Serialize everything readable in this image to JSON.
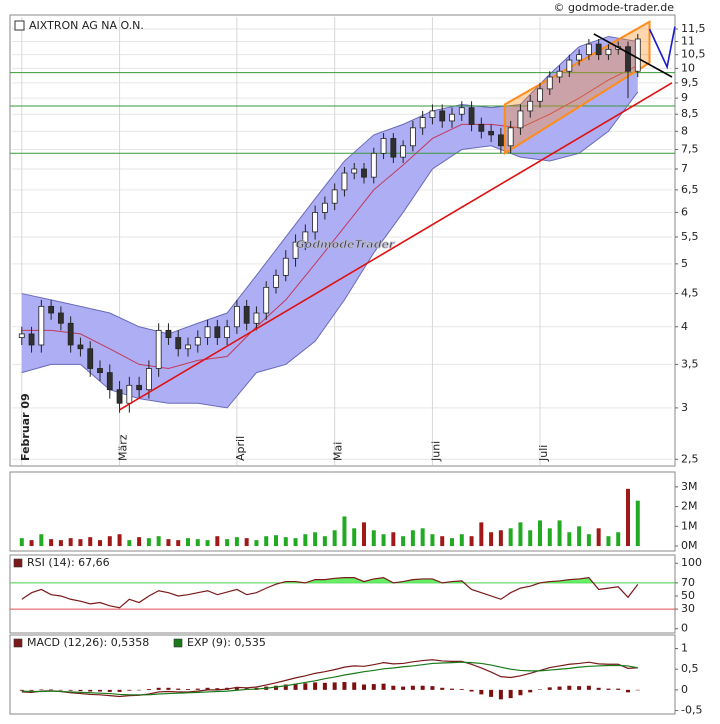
{
  "chart_data": [
    {
      "type": "candlestick",
      "title": "AIXTRON AG NA O.N.",
      "source": "© godmode-trader.de",
      "watermark": "GodmodeTrader",
      "x": [
        0,
        1,
        2,
        3,
        4,
        5,
        6,
        7,
        8,
        9,
        10,
        11,
        12,
        13,
        14,
        15,
        16,
        17,
        18,
        19,
        20,
        21,
        22,
        23,
        24,
        25,
        26,
        27,
        28,
        29,
        30,
        31,
        32,
        33,
        34,
        35,
        36,
        37,
        38,
        39,
        40,
        41,
        42,
        43,
        44,
        45,
        46,
        47,
        48,
        49,
        50,
        51,
        52,
        53,
        54,
        55,
        56,
        57,
        58,
        59,
        60,
        61,
        62,
        63
      ],
      "open": [
        3.85,
        3.9,
        3.75,
        4.3,
        4.2,
        4.05,
        3.75,
        3.7,
        3.45,
        3.4,
        3.2,
        3.05,
        3.25,
        3.2,
        3.45,
        3.95,
        3.85,
        3.7,
        3.75,
        3.85,
        4.0,
        3.85,
        4.0,
        4.3,
        4.05,
        4.2,
        4.6,
        4.8,
        5.1,
        5.4,
        5.6,
        6.0,
        6.2,
        6.5,
        6.9,
        7.0,
        6.8,
        7.4,
        7.8,
        7.3,
        7.6,
        8.1,
        8.4,
        8.6,
        8.3,
        8.5,
        8.7,
        8.2,
        8.0,
        7.9,
        7.6,
        8.1,
        8.6,
        8.9,
        9.3,
        9.7,
        9.9,
        10.3,
        10.5,
        10.9,
        10.5,
        10.7,
        10.8,
        9.9
      ],
      "high": [
        4.0,
        4.0,
        4.4,
        4.4,
        4.3,
        4.15,
        3.85,
        3.8,
        3.55,
        3.5,
        3.3,
        3.35,
        3.35,
        3.55,
        4.05,
        4.05,
        3.95,
        3.85,
        3.95,
        4.1,
        4.1,
        4.1,
        4.4,
        4.4,
        4.3,
        4.7,
        4.9,
        5.25,
        5.55,
        5.75,
        6.15,
        6.35,
        6.65,
        7.05,
        7.15,
        7.15,
        7.55,
        7.95,
        7.95,
        7.75,
        8.3,
        8.6,
        8.8,
        8.8,
        8.7,
        8.9,
        8.9,
        8.4,
        8.2,
        8.1,
        8.3,
        8.8,
        9.1,
        9.5,
        9.9,
        10.1,
        10.5,
        10.7,
        11.1,
        11.1,
        10.9,
        11.0,
        11.0,
        11.3
      ],
      "low": [
        3.75,
        3.65,
        3.65,
        4.1,
        3.95,
        3.65,
        3.6,
        3.35,
        3.3,
        3.1,
        2.95,
        2.95,
        3.1,
        3.1,
        3.35,
        3.75,
        3.6,
        3.6,
        3.65,
        3.75,
        3.75,
        3.75,
        3.9,
        3.95,
        3.95,
        4.1,
        4.5,
        4.7,
        4.95,
        5.25,
        5.45,
        5.85,
        6.05,
        6.35,
        6.75,
        6.65,
        6.65,
        7.25,
        7.15,
        7.15,
        7.45,
        7.9,
        8.2,
        8.1,
        8.1,
        8.3,
        8.0,
        7.8,
        7.7,
        7.4,
        7.4,
        7.9,
        8.4,
        8.7,
        9.1,
        9.5,
        9.7,
        10.1,
        10.3,
        10.3,
        10.3,
        10.5,
        9.0,
        9.7
      ],
      "close": [
        3.9,
        3.75,
        4.3,
        4.2,
        4.05,
        3.75,
        3.7,
        3.45,
        3.4,
        3.2,
        3.05,
        3.25,
        3.2,
        3.45,
        3.95,
        3.85,
        3.7,
        3.75,
        3.85,
        4.0,
        3.85,
        4.0,
        4.3,
        4.05,
        4.2,
        4.6,
        4.8,
        5.1,
        5.4,
        5.6,
        6.0,
        6.2,
        6.5,
        6.9,
        7.0,
        6.8,
        7.4,
        7.8,
        7.3,
        7.6,
        8.1,
        8.4,
        8.6,
        8.3,
        8.5,
        8.7,
        8.2,
        8.0,
        7.9,
        7.6,
        8.1,
        8.6,
        8.9,
        9.3,
        9.7,
        9.9,
        10.3,
        10.5,
        10.9,
        10.5,
        10.7,
        10.8,
        9.9,
        11.1
      ],
      "up_color": "#ffffff",
      "down_color": "#303030",
      "bands": {
        "x": [
          0,
          3,
          6,
          9,
          12,
          15,
          18,
          21,
          24,
          27,
          30,
          33,
          36,
          39,
          42,
          45,
          48,
          51,
          54,
          57,
          60,
          63
        ],
        "upper": [
          4.5,
          4.4,
          4.3,
          4.2,
          4.0,
          3.9,
          4.05,
          4.2,
          4.8,
          5.5,
          6.3,
          7.2,
          7.9,
          8.2,
          8.6,
          8.8,
          8.7,
          8.8,
          9.8,
          10.8,
          11.2,
          11.0
        ],
        "lower": [
          3.4,
          3.5,
          3.5,
          3.2,
          3.1,
          3.05,
          3.05,
          3.0,
          3.4,
          3.5,
          3.8,
          4.4,
          5.2,
          6.0,
          7.0,
          7.5,
          7.6,
          7.3,
          7.2,
          7.4,
          8.0,
          9.2
        ],
        "middle": [
          3.95,
          3.95,
          3.9,
          3.7,
          3.5,
          3.45,
          3.55,
          3.6,
          4.0,
          4.4,
          5.0,
          5.7,
          6.5,
          7.1,
          7.8,
          8.2,
          8.2,
          8.1,
          8.5,
          9.0,
          9.6,
          10.1
        ],
        "fill": "#aeaef5",
        "edge": "#6a6ab8",
        "middle_color": "#c03a5a"
      },
      "levels": [
        9.85,
        8.75,
        7.4
      ],
      "level_color": "#3a9a3a",
      "channel": {
        "color": "#ff8c1a",
        "upper": [
          [
            49.4,
            8.8
          ],
          [
            64.2,
            11.8
          ]
        ],
        "lower": [
          [
            49.4,
            7.4
          ],
          [
            64.2,
            10.2
          ]
        ]
      },
      "trendlines": [
        {
          "color": "#e01010",
          "points": [
            [
              10,
              2.98
            ],
            [
              66.5,
              9.5
            ]
          ]
        },
        {
          "color": "#000000",
          "points": [
            [
              58.5,
              11.3
            ],
            [
              66.5,
              9.7
            ]
          ]
        },
        {
          "color": "#1a1ad0",
          "points": [
            [
              64.2,
              11.5
            ],
            [
              66,
              10.05
            ],
            [
              66.8,
              11.6
            ]
          ]
        }
      ],
      "xlim": [
        -1,
        66.5
      ],
      "xticks": [
        {
          "value": 0,
          "label": "Februar 09"
        },
        {
          "value": 10,
          "label": "März"
        },
        {
          "value": 22,
          "label": "April"
        },
        {
          "value": 32,
          "label": "Mai"
        },
        {
          "value": 42,
          "label": "Juni"
        },
        {
          "value": 53,
          "label": "Juli"
        }
      ],
      "ylim": [
        2.45,
        12
      ],
      "log_scale": true,
      "grid": true,
      "yticks": [
        {
          "value": 2.5,
          "label": "2,5"
        },
        3,
        {
          "value": 3.5,
          "label": "3,5"
        },
        4,
        {
          "value": 4.5,
          "label": "4,5"
        },
        5,
        {
          "value": 5.5,
          "label": "5,5"
        },
        6,
        {
          "value": 6.5,
          "label": "6,5"
        },
        7,
        {
          "value": 7.5,
          "label": "7,5"
        },
        8,
        {
          "value": 8.5,
          "label": "8,5"
        },
        9,
        {
          "value": 9.5,
          "label": "9,5"
        },
        10,
        {
          "value": 10.5,
          "label": "10,5"
        },
        11,
        {
          "value": 11.5,
          "label": "11,5"
        }
      ]
    },
    {
      "type": "bar",
      "x": [
        0,
        1,
        2,
        3,
        4,
        5,
        6,
        7,
        8,
        9,
        10,
        11,
        12,
        13,
        14,
        15,
        16,
        17,
        18,
        19,
        20,
        21,
        22,
        23,
        24,
        25,
        26,
        27,
        28,
        29,
        30,
        31,
        32,
        33,
        34,
        35,
        36,
        37,
        38,
        39,
        40,
        41,
        42,
        43,
        44,
        45,
        46,
        47,
        48,
        49,
        50,
        51,
        52,
        53,
        54,
        55,
        56,
        57,
        58,
        59,
        60,
        61,
        62,
        63
      ],
      "values": [
        400000,
        300000,
        600000,
        350000,
        300000,
        400000,
        350000,
        450000,
        300000,
        500000,
        600000,
        300000,
        450000,
        400000,
        500000,
        350000,
        300000,
        400000,
        350000,
        300000,
        500000,
        350000,
        450000,
        400000,
        300000,
        500000,
        550000,
        450000,
        400000,
        600000,
        700000,
        500000,
        800000,
        1500000,
        900000,
        1200000,
        800000,
        600000,
        700000,
        500000,
        800000,
        900000,
        600000,
        500000,
        400000,
        600000,
        500000,
        1200000,
        700000,
        800000,
        900000,
        1200000,
        800000,
        1300000,
        900000,
        1300000,
        700000,
        1000000,
        600000,
        900000,
        500000,
        700000,
        2900000,
        2300000
      ],
      "up_color": "#22aa22",
      "down_color": "#a01818",
      "xlim": [
        -1,
        66.5
      ],
      "ylim": [
        -200000,
        3500000
      ],
      "yticks": [
        {
          "value": 0,
          "label": "0M"
        },
        {
          "value": 1000000,
          "label": "1M"
        },
        {
          "value": 2000000,
          "label": "2M"
        },
        {
          "value": 3000000,
          "label": "3M"
        }
      ]
    },
    {
      "type": "line",
      "x": [
        0,
        1,
        2,
        3,
        4,
        5,
        6,
        7,
        8,
        9,
        10,
        11,
        12,
        13,
        14,
        15,
        16,
        17,
        18,
        19,
        20,
        21,
        22,
        23,
        24,
        25,
        26,
        27,
        28,
        29,
        30,
        31,
        32,
        33,
        34,
        35,
        36,
        37,
        38,
        39,
        40,
        41,
        42,
        43,
        44,
        45,
        46,
        47,
        48,
        49,
        50,
        51,
        52,
        53,
        54,
        55,
        56,
        57,
        58,
        59,
        60,
        61,
        62,
        63
      ],
      "series": [
        {
          "name": "RSI (14): 67,66",
          "color": "#7a1a1a",
          "values": [
            45,
            55,
            60,
            52,
            50,
            45,
            42,
            38,
            40,
            35,
            32,
            45,
            40,
            50,
            58,
            55,
            50,
            52,
            55,
            58,
            52,
            56,
            60,
            52,
            55,
            62,
            68,
            72,
            72,
            70,
            75,
            75,
            77,
            78,
            78,
            72,
            76,
            78,
            70,
            72,
            75,
            76,
            76,
            70,
            72,
            73,
            60,
            55,
            50,
            45,
            55,
            62,
            65,
            70,
            72,
            73,
            75,
            76,
            78,
            60,
            62,
            64,
            48,
            67.66
          ]
        }
      ],
      "hlines": [
        {
          "value": 70,
          "color": "#44cc44"
        },
        {
          "value": 30,
          "color": "#e05050"
        }
      ],
      "fill_color": "#66ee66",
      "xlim": [
        -1,
        66.5
      ],
      "ylim": [
        -5,
        108
      ],
      "yticks": [
        0,
        30,
        50,
        70,
        100
      ]
    },
    {
      "type": "line",
      "x": [
        0,
        1,
        2,
        3,
        4,
        5,
        6,
        7,
        8,
        9,
        10,
        11,
        12,
        13,
        14,
        15,
        16,
        17,
        18,
        19,
        20,
        21,
        22,
        23,
        24,
        25,
        26,
        27,
        28,
        29,
        30,
        31,
        32,
        33,
        34,
        35,
        36,
        37,
        38,
        39,
        40,
        41,
        42,
        43,
        44,
        45,
        46,
        47,
        48,
        49,
        50,
        51,
        52,
        53,
        54,
        55,
        56,
        57,
        58,
        59,
        60,
        61,
        62,
        63
      ],
      "series": [
        {
          "name": "MACD (12,26): 0,5358",
          "color": "#7a1a1a",
          "values": [
            -0.05,
            -0.06,
            -0.03,
            -0.02,
            -0.04,
            -0.07,
            -0.09,
            -0.11,
            -0.12,
            -0.14,
            -0.16,
            -0.14,
            -0.13,
            -0.1,
            -0.05,
            -0.04,
            -0.05,
            -0.05,
            -0.03,
            0.0,
            0.0,
            0.02,
            0.06,
            0.05,
            0.07,
            0.12,
            0.17,
            0.23,
            0.29,
            0.34,
            0.4,
            0.44,
            0.49,
            0.55,
            0.58,
            0.57,
            0.61,
            0.66,
            0.63,
            0.64,
            0.68,
            0.71,
            0.73,
            0.7,
            0.69,
            0.69,
            0.62,
            0.53,
            0.43,
            0.32,
            0.3,
            0.34,
            0.4,
            0.47,
            0.54,
            0.58,
            0.62,
            0.64,
            0.67,
            0.63,
            0.62,
            0.62,
            0.52,
            0.5358
          ]
        },
        {
          "name": "EXP (9): 0,535",
          "color": "#1a7a1a",
          "values": [
            -0.03,
            -0.04,
            -0.04,
            -0.03,
            -0.04,
            -0.05,
            -0.06,
            -0.07,
            -0.08,
            -0.09,
            -0.11,
            -0.12,
            -0.12,
            -0.12,
            -0.1,
            -0.09,
            -0.08,
            -0.07,
            -0.06,
            -0.05,
            -0.04,
            -0.03,
            -0.01,
            0.01,
            0.02,
            0.04,
            0.07,
            0.1,
            0.14,
            0.18,
            0.22,
            0.27,
            0.31,
            0.36,
            0.4,
            0.44,
            0.47,
            0.51,
            0.53,
            0.56,
            0.58,
            0.61,
            0.64,
            0.65,
            0.66,
            0.67,
            0.66,
            0.64,
            0.6,
            0.55,
            0.5,
            0.47,
            0.46,
            0.46,
            0.48,
            0.5,
            0.52,
            0.55,
            0.57,
            0.58,
            0.59,
            0.59,
            0.58,
            0.535
          ]
        }
      ],
      "histogram": {
        "color": "#7a1010",
        "values": [
          -0.02,
          -0.02,
          0.01,
          0.01,
          0.0,
          -0.02,
          -0.03,
          -0.04,
          -0.04,
          -0.05,
          -0.05,
          -0.02,
          -0.01,
          0.02,
          0.05,
          0.05,
          0.03,
          0.02,
          0.03,
          0.05,
          0.04,
          0.05,
          0.07,
          0.04,
          0.05,
          0.08,
          0.1,
          0.13,
          0.15,
          0.16,
          0.18,
          0.17,
          0.18,
          0.19,
          0.18,
          0.13,
          0.14,
          0.15,
          0.1,
          0.08,
          0.1,
          0.1,
          0.09,
          0.05,
          0.03,
          0.02,
          -0.04,
          -0.11,
          -0.17,
          -0.23,
          -0.2,
          -0.13,
          -0.06,
          0.01,
          0.06,
          0.08,
          0.1,
          0.09,
          0.1,
          0.05,
          0.03,
          0.03,
          -0.06,
          0.0008
        ]
      },
      "xlim": [
        -1,
        66.5
      ],
      "ylim": [
        -0.56,
        1.28
      ],
      "yticks": [
        {
          "value": -0.5,
          "label": "-0,5"
        },
        0,
        {
          "value": 0.5,
          "label": "0,5"
        },
        1
      ]
    }
  ]
}
